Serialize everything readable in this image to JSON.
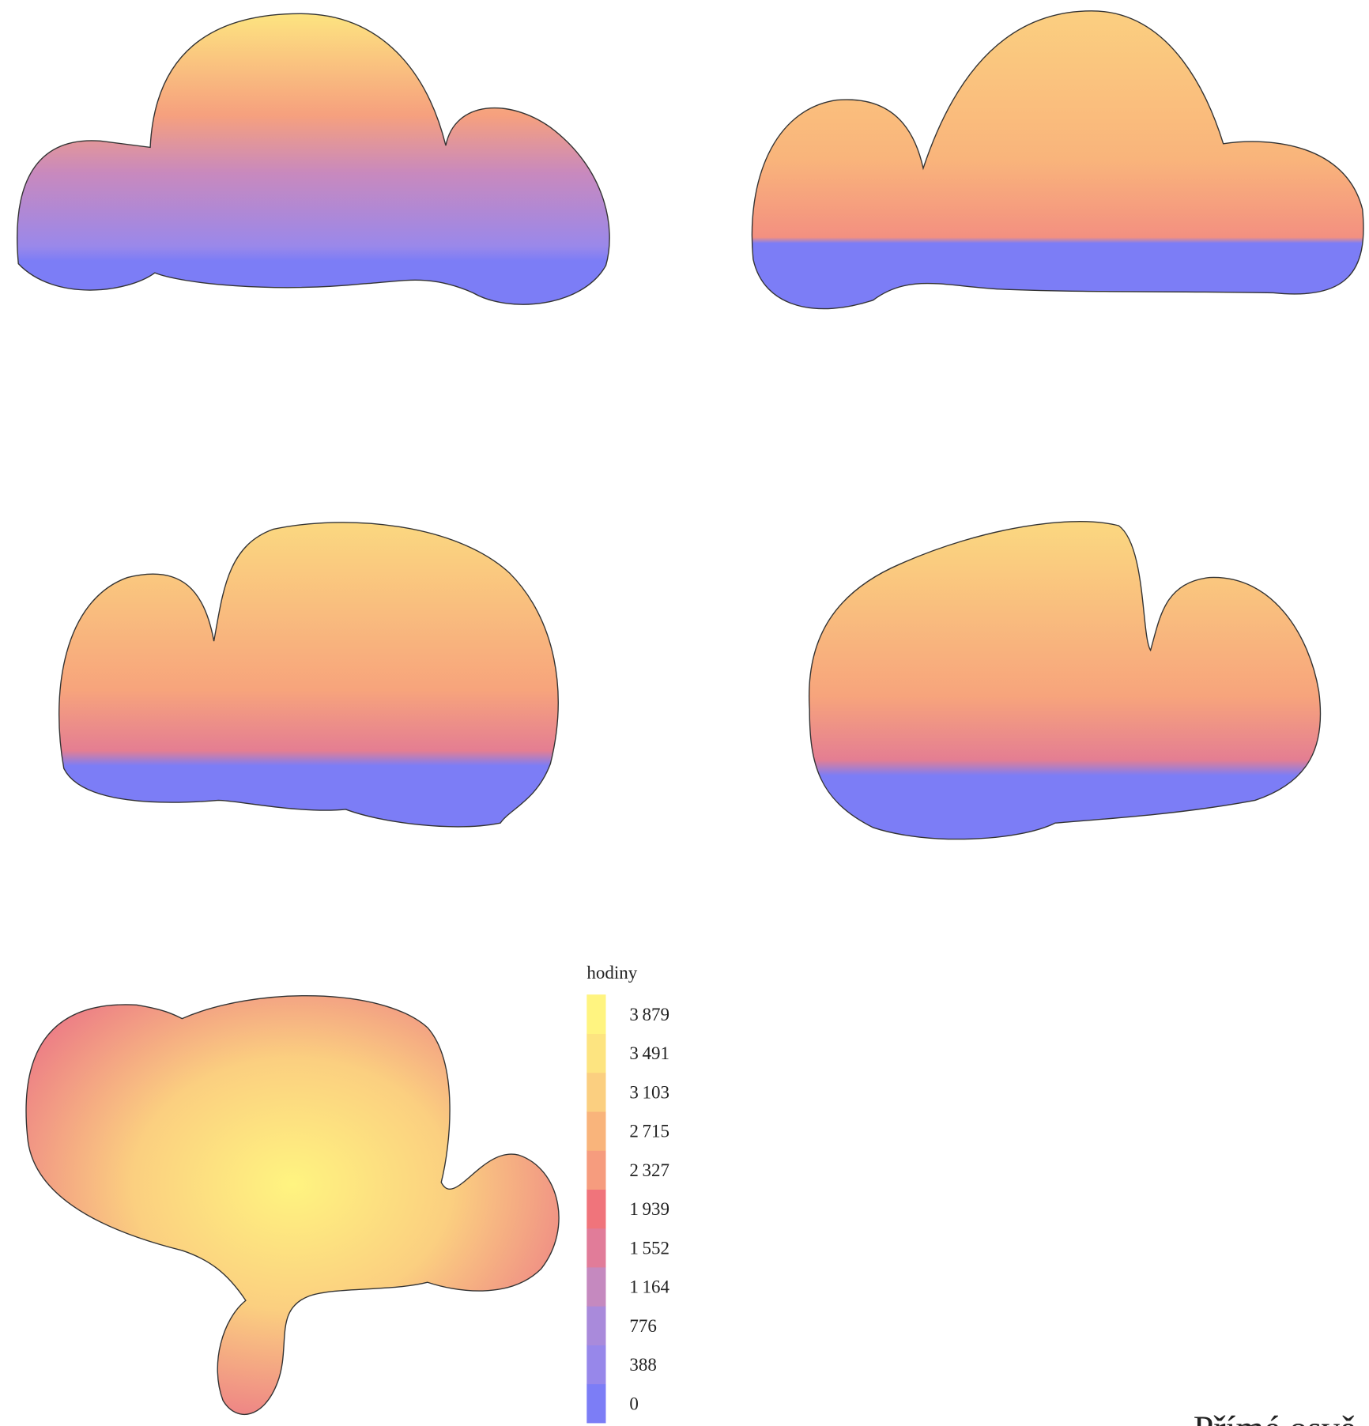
{
  "chart_data": {
    "type": "colorbar",
    "title": "hodiny",
    "yticks": [
      0,
      388,
      776,
      {
        "value": 1164,
        "label": "1 164"
      },
      {
        "value": 1552,
        "label": "1 552"
      },
      {
        "value": 1939,
        "label": "1 939"
      },
      {
        "value": 2327,
        "label": "2 327"
      },
      {
        "value": 2715,
        "label": "2 715"
      },
      {
        "value": 3103,
        "label": "3 103"
      },
      {
        "value": 3491,
        "label": "3 491"
      },
      {
        "value": 3879,
        "label": "3 879"
      }
    ],
    "colors": [
      "#7c7df6",
      "#9787ea",
      "#a98adb",
      "#c589bf",
      "#e17c99",
      "#f0747b",
      "#f69c7e",
      "#f9b47b",
      "#fbcf80",
      "#fde480",
      "#fff480"
    ]
  },
  "caption": "Přímé osvě"
}
